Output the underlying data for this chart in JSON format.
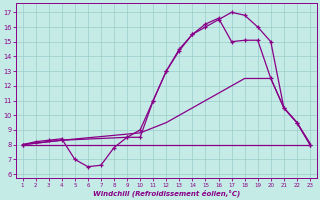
{
  "bg_color": "#c5ebe6",
  "line_color": "#880088",
  "grid_color": "#99cccc",
  "xlabel": "Windchill (Refroidissement éolien,°C)",
  "ylim": [
    5.7,
    17.6
  ],
  "xlim": [
    0.5,
    23.5
  ],
  "yticks": [
    6,
    7,
    8,
    9,
    10,
    11,
    12,
    13,
    14,
    15,
    16,
    17
  ],
  "xticks": [
    1,
    2,
    3,
    4,
    5,
    6,
    7,
    8,
    9,
    10,
    11,
    12,
    13,
    14,
    15,
    16,
    17,
    18,
    19,
    20,
    21,
    22,
    23
  ],
  "series": [
    {
      "x": [
        1,
        2,
        3,
        4,
        5,
        6,
        7,
        8,
        9,
        10,
        11,
        12,
        13,
        14,
        15,
        16,
        17,
        18,
        19,
        20,
        21,
        22,
        23
      ],
      "y": [
        8.0,
        8.2,
        8.3,
        8.4,
        7.0,
        6.5,
        6.6,
        7.8,
        8.5,
        8.5,
        11.0,
        13.0,
        14.4,
        15.5,
        16.0,
        16.5,
        17.0,
        16.8,
        16.0,
        15.0,
        10.5,
        9.5,
        8.0
      ],
      "marker": true
    },
    {
      "x": [
        1,
        9,
        22,
        23
      ],
      "y": [
        8.0,
        8.0,
        8.0,
        8.0
      ],
      "marker": false
    },
    {
      "x": [
        1,
        4,
        10,
        12,
        14,
        16,
        18,
        20,
        21,
        22,
        23
      ],
      "y": [
        8.0,
        8.3,
        8.8,
        9.5,
        10.5,
        11.5,
        12.5,
        12.5,
        10.5,
        9.5,
        8.1
      ],
      "marker": false
    },
    {
      "x": [
        1,
        4,
        9,
        10,
        11,
        12,
        13,
        14,
        15,
        16,
        17,
        18,
        19,
        20,
        21,
        22,
        23
      ],
      "y": [
        8.0,
        8.3,
        8.5,
        9.0,
        11.0,
        13.0,
        14.5,
        15.5,
        16.2,
        16.6,
        15.0,
        15.1,
        15.1,
        12.5,
        10.5,
        9.5,
        8.0
      ],
      "marker": true
    }
  ]
}
